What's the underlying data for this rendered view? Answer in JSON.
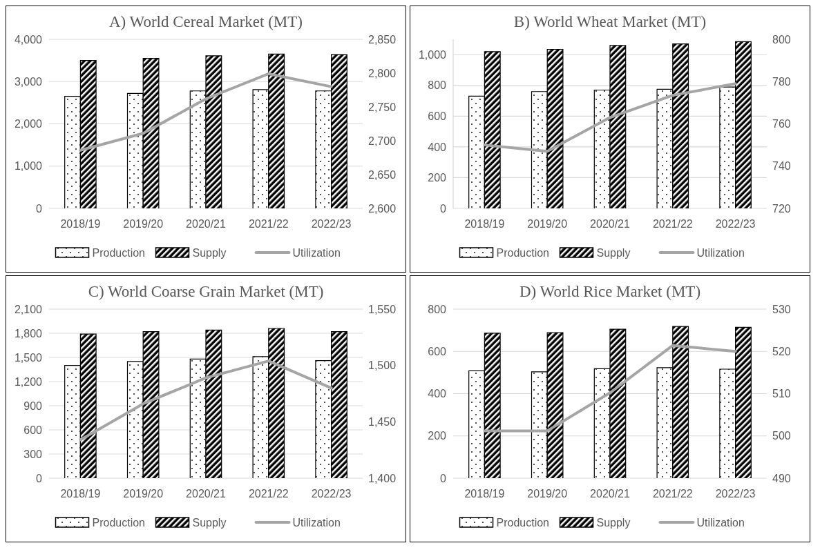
{
  "chart_data": [
    {
      "type": "bar",
      "title": "A) World Cereal Market (MT)",
      "categories": [
        "2018/19",
        "2019/20",
        "2020/21",
        "2021/22",
        "2022/23"
      ],
      "series": [
        {
          "name": "Production",
          "color": "#ffffff",
          "values": [
            2650,
            2720,
            2780,
            2810,
            2780
          ]
        },
        {
          "name": "Supply",
          "color": "#000000",
          "values": [
            3500,
            3550,
            3610,
            3650,
            3640
          ]
        },
        {
          "name": "Utilization",
          "type": "line",
          "axis": "y2",
          "color": "#a5a5a5",
          "values": [
            2686,
            2711,
            2762,
            2799,
            2780
          ]
        }
      ],
      "ylim": [
        0,
        4000
      ],
      "yticks": [
        {
          "value": 0,
          "label": "0"
        },
        {
          "value": 1000,
          "label": "1,000"
        },
        {
          "value": 2000,
          "label": "2,000"
        },
        {
          "value": 3000,
          "label": "3,000"
        },
        {
          "value": 4000,
          "label": "4,000"
        }
      ],
      "y2lim": [
        2600,
        2850
      ],
      "y2ticks": [
        {
          "value": 2600,
          "label": "2,600"
        },
        {
          "value": 2650,
          "label": "2,650"
        },
        {
          "value": 2700,
          "label": "2,700"
        },
        {
          "value": 2750,
          "label": "2,750"
        },
        {
          "value": 2800,
          "label": "2,800"
        },
        {
          "value": 2850,
          "label": "2,850"
        }
      ],
      "grid": "y",
      "legend": "bottom",
      "line_style": "solid",
      "marker": "none"
    },
    {
      "type": "bar",
      "title": "B) World Wheat Market (MT)",
      "categories": [
        "2018/19",
        "2019/20",
        "2020/21",
        "2021/22",
        "2022/23"
      ],
      "series": [
        {
          "name": "Production",
          "color": "#ffffff",
          "values": [
            730,
            760,
            770,
            775,
            790
          ]
        },
        {
          "name": "Supply",
          "color": "#000000",
          "values": [
            1020,
            1035,
            1060,
            1070,
            1085
          ]
        },
        {
          "name": "Utilization",
          "type": "line",
          "axis": "y2",
          "color": "#a5a5a5",
          "values": [
            750,
            747,
            763,
            773.5,
            779
          ]
        }
      ],
      "ylim": [
        0,
        1100
      ],
      "yticks": [
        {
          "value": 0,
          "label": "0"
        },
        {
          "value": 200,
          "label": "200"
        },
        {
          "value": 400,
          "label": "400"
        },
        {
          "value": 600,
          "label": "600"
        },
        {
          "value": 800,
          "label": "800"
        },
        {
          "value": 1000,
          "label": "1,000"
        }
      ],
      "y2lim": [
        720,
        800
      ],
      "y2ticks": [
        720,
        740,
        760,
        780,
        800
      ],
      "grid": "y",
      "legend": "bottom",
      "line_style": "solid",
      "marker": "none"
    },
    {
      "type": "bar",
      "title": "C) World Coarse Grain Market (MT)",
      "categories": [
        "2018/19",
        "2019/20",
        "2020/21",
        "2021/22",
        "2022/23"
      ],
      "series": [
        {
          "name": "Production",
          "color": "#ffffff",
          "values": [
            1400,
            1450,
            1480,
            1510,
            1460
          ]
        },
        {
          "name": "Supply",
          "color": "#000000",
          "values": [
            1790,
            1820,
            1840,
            1860,
            1820
          ]
        },
        {
          "name": "Utilization",
          "type": "line",
          "axis": "y2",
          "color": "#a5a5a5",
          "values": [
            1434,
            1466,
            1489,
            1504,
            1480
          ]
        }
      ],
      "ylim": [
        0,
        2100
      ],
      "yticks": [
        {
          "value": 0,
          "label": "0"
        },
        {
          "value": 300,
          "label": "300"
        },
        {
          "value": 600,
          "label": "600"
        },
        {
          "value": 900,
          "label": "900"
        },
        {
          "value": 1200,
          "label": "1,200"
        },
        {
          "value": 1500,
          "label": "1,500"
        },
        {
          "value": 1800,
          "label": "1,800"
        },
        {
          "value": 2100,
          "label": "2,100"
        }
      ],
      "y2lim": [
        1400,
        1550
      ],
      "y2ticks": [
        {
          "value": 1400,
          "label": "1,400"
        },
        {
          "value": 1450,
          "label": "1,450"
        },
        {
          "value": 1500,
          "label": "1,500"
        },
        {
          "value": 1550,
          "label": "1,550"
        }
      ],
      "grid": "y",
      "legend": "bottom",
      "line_style": "solid",
      "marker": "none"
    },
    {
      "type": "bar",
      "title": "D) World Rice Market (MT)",
      "categories": [
        "2018/19",
        "2019/20",
        "2020/21",
        "2021/22",
        "2022/23"
      ],
      "series": [
        {
          "name": "Production",
          "color": "#ffffff",
          "values": [
            508,
            503,
            518,
            523,
            516
          ]
        },
        {
          "name": "Supply",
          "color": "#000000",
          "values": [
            686,
            689,
            705,
            718,
            714
          ]
        },
        {
          "name": "Utilization",
          "type": "line",
          "axis": "y2",
          "color": "#a5a5a5",
          "values": [
            501.2,
            501.2,
            510.2,
            521.4,
            520
          ]
        }
      ],
      "ylim": [
        0,
        800
      ],
      "yticks": [
        0,
        200,
        400,
        600,
        800
      ],
      "y2lim": [
        490,
        530
      ],
      "y2ticks": [
        490,
        500,
        510,
        520,
        530
      ],
      "grid": "y",
      "legend": "bottom",
      "line_style": "solid",
      "marker": "none"
    }
  ]
}
